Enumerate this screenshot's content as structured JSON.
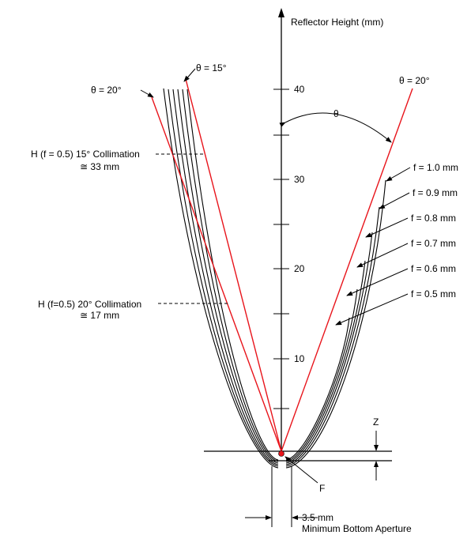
{
  "axis": {
    "label": "Reflector Height (mm)",
    "ticks": [
      "10",
      "20",
      "30",
      "40"
    ]
  },
  "labels": {
    "theta_left": "θ = 20°",
    "theta_top": "θ = 15°",
    "theta_right": "θ = 20°",
    "theta_center": "θ",
    "collimation_15_line1": "H (f = 0.5) 15° Collimation",
    "collimation_15_line2": "≅ 33 mm",
    "collimation_20_line1": "H (f=0.5) 20° Collimation",
    "collimation_20_line2": "≅ 17 mm",
    "z": "Z",
    "f_point": "F",
    "aperture_line1": "3.5 mm",
    "aperture_line2": "Minimum Bottom Aperture"
  },
  "focal_lengths": [
    "f = 1.0 mm",
    "f = 0.9 mm",
    "f = 0.8 mm",
    "f = 0.7 mm",
    "f = 0.6 mm",
    "f = 0.5 mm"
  ],
  "colors": {
    "ray": "#e8141b",
    "ink": "#000000",
    "background": "#ffffff"
  }
}
